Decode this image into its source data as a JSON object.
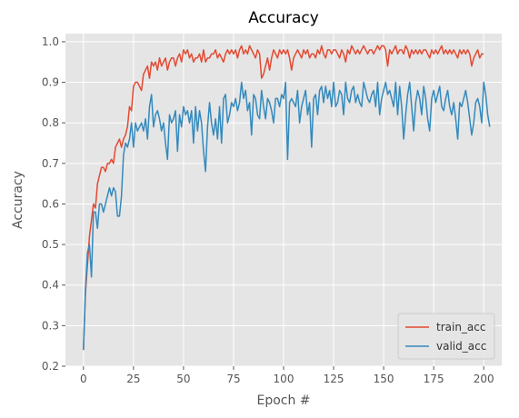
{
  "chart_data": {
    "type": "line",
    "title": "Accuracy",
    "xlabel": "Epoch #",
    "ylabel": "Accuracy",
    "xlim": [
      -9,
      209
    ],
    "ylim": [
      0.2,
      1.02
    ],
    "xticks": [
      0,
      25,
      50,
      75,
      100,
      125,
      150,
      175,
      200
    ],
    "yticks": [
      0.2,
      0.3,
      0.4,
      0.5,
      0.6,
      0.7,
      0.8,
      0.9,
      1.0
    ],
    "grid": true,
    "legend_position": "bottom-right",
    "background": "#e5e5e5",
    "series": [
      {
        "name": "train_acc",
        "color": "#e24a33",
        "x_start": 0,
        "x_step": 1,
        "values": [
          0.24,
          0.38,
          0.45,
          0.52,
          0.56,
          0.6,
          0.59,
          0.65,
          0.67,
          0.69,
          0.69,
          0.68,
          0.7,
          0.7,
          0.71,
          0.7,
          0.74,
          0.75,
          0.76,
          0.74,
          0.76,
          0.77,
          0.79,
          0.84,
          0.83,
          0.89,
          0.9,
          0.9,
          0.89,
          0.88,
          0.92,
          0.93,
          0.94,
          0.91,
          0.95,
          0.94,
          0.95,
          0.93,
          0.96,
          0.94,
          0.95,
          0.96,
          0.93,
          0.95,
          0.96,
          0.96,
          0.94,
          0.96,
          0.97,
          0.95,
          0.98,
          0.97,
          0.98,
          0.96,
          0.97,
          0.95,
          0.96,
          0.96,
          0.97,
          0.95,
          0.98,
          0.95,
          0.96,
          0.96,
          0.97,
          0.97,
          0.98,
          0.96,
          0.97,
          0.96,
          0.95,
          0.97,
          0.98,
          0.97,
          0.98,
          0.97,
          0.98,
          0.96,
          0.98,
          0.99,
          0.97,
          0.98,
          0.97,
          0.99,
          0.98,
          0.97,
          0.96,
          0.98,
          0.97,
          0.91,
          0.92,
          0.94,
          0.96,
          0.93,
          0.96,
          0.98,
          0.97,
          0.96,
          0.98,
          0.97,
          0.98,
          0.97,
          0.98,
          0.96,
          0.93,
          0.96,
          0.97,
          0.98,
          0.97,
          0.96,
          0.98,
          0.97,
          0.98,
          0.96,
          0.97,
          0.97,
          0.96,
          0.98,
          0.97,
          0.99,
          0.97,
          0.96,
          0.98,
          0.98,
          0.97,
          0.98,
          0.98,
          0.97,
          0.96,
          0.98,
          0.97,
          0.95,
          0.98,
          0.97,
          0.99,
          0.98,
          0.97,
          0.98,
          0.97,
          0.98,
          0.99,
          0.98,
          0.97,
          0.98,
          0.98,
          0.97,
          0.98,
          0.99,
          0.98,
          0.99,
          0.99,
          0.98,
          0.94,
          0.98,
          0.97,
          0.98,
          0.99,
          0.97,
          0.98,
          0.98,
          0.97,
          0.99,
          0.98,
          0.96,
          0.98,
          0.97,
          0.98,
          0.97,
          0.98,
          0.97,
          0.98,
          0.98,
          0.97,
          0.96,
          0.98,
          0.97,
          0.98,
          0.97,
          0.98,
          0.99,
          0.97,
          0.98,
          0.97,
          0.98,
          0.97,
          0.98,
          0.97,
          0.96,
          0.98,
          0.97,
          0.98,
          0.97,
          0.98,
          0.97,
          0.94,
          0.96,
          0.97,
          0.98,
          0.96,
          0.97,
          0.97
        ]
      },
      {
        "name": "valid_acc",
        "color": "#348abd",
        "x_start": 0,
        "x_step": 1,
        "values": [
          0.24,
          0.39,
          0.48,
          0.5,
          0.42,
          0.58,
          0.58,
          0.54,
          0.6,
          0.6,
          0.58,
          0.6,
          0.62,
          0.64,
          0.62,
          0.64,
          0.63,
          0.57,
          0.57,
          0.62,
          0.72,
          0.75,
          0.74,
          0.76,
          0.8,
          0.74,
          0.8,
          0.78,
          0.79,
          0.8,
          0.78,
          0.81,
          0.76,
          0.84,
          0.87,
          0.79,
          0.82,
          0.83,
          0.81,
          0.78,
          0.8,
          0.75,
          0.71,
          0.82,
          0.8,
          0.81,
          0.83,
          0.73,
          0.82,
          0.79,
          0.84,
          0.82,
          0.83,
          0.8,
          0.83,
          0.75,
          0.84,
          0.78,
          0.83,
          0.8,
          0.73,
          0.68,
          0.79,
          0.85,
          0.8,
          0.77,
          0.81,
          0.76,
          0.84,
          0.75,
          0.86,
          0.87,
          0.8,
          0.82,
          0.85,
          0.84,
          0.86,
          0.83,
          0.85,
          0.9,
          0.86,
          0.88,
          0.83,
          0.85,
          0.77,
          0.87,
          0.86,
          0.82,
          0.81,
          0.88,
          0.84,
          0.81,
          0.86,
          0.85,
          0.83,
          0.8,
          0.86,
          0.86,
          0.84,
          0.87,
          0.86,
          0.9,
          0.71,
          0.85,
          0.86,
          0.85,
          0.84,
          0.88,
          0.8,
          0.84,
          0.86,
          0.88,
          0.82,
          0.85,
          0.74,
          0.86,
          0.87,
          0.82,
          0.88,
          0.89,
          0.85,
          0.89,
          0.86,
          0.88,
          0.84,
          0.9,
          0.84,
          0.85,
          0.88,
          0.87,
          0.82,
          0.9,
          0.86,
          0.85,
          0.88,
          0.89,
          0.85,
          0.87,
          0.85,
          0.84,
          0.9,
          0.88,
          0.86,
          0.85,
          0.87,
          0.88,
          0.84,
          0.9,
          0.82,
          0.86,
          0.88,
          0.9,
          0.87,
          0.88,
          0.86,
          0.84,
          0.9,
          0.82,
          0.89,
          0.84,
          0.76,
          0.82,
          0.87,
          0.9,
          0.84,
          0.78,
          0.85,
          0.88,
          0.86,
          0.82,
          0.89,
          0.86,
          0.81,
          0.78,
          0.86,
          0.88,
          0.85,
          0.87,
          0.89,
          0.84,
          0.83,
          0.86,
          0.88,
          0.84,
          0.82,
          0.85,
          0.81,
          0.76,
          0.85,
          0.84,
          0.86,
          0.88,
          0.85,
          0.81,
          0.77,
          0.8,
          0.85,
          0.86,
          0.84,
          0.8,
          0.9,
          0.87,
          0.82,
          0.79
        ]
      }
    ]
  }
}
